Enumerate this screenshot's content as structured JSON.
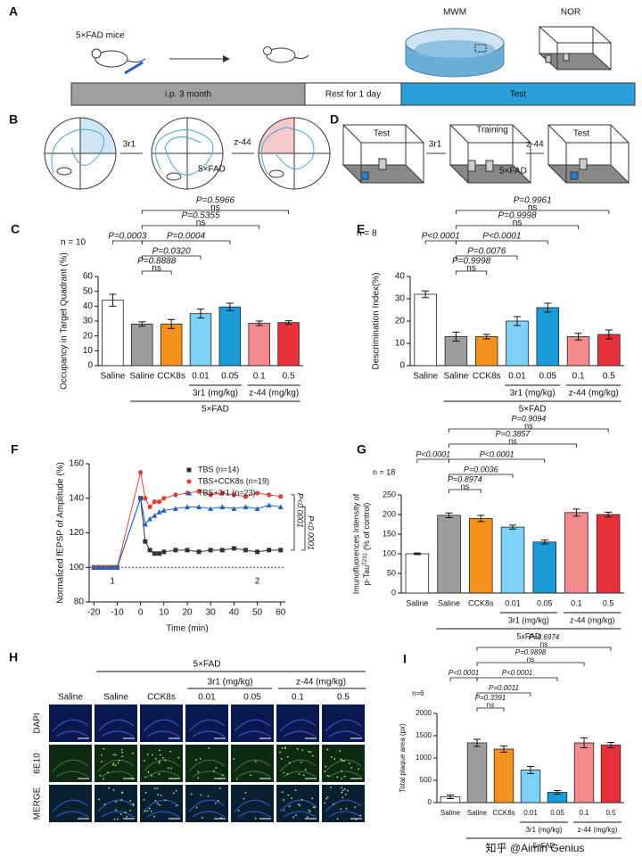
{
  "figure": {
    "A": {
      "label": "A",
      "mouse": "5×FAD mice",
      "mwm": "MWM",
      "nor": "NOR",
      "timeline": [
        "i.p. 3 month",
        "Rest for 1 day",
        "Test"
      ]
    },
    "B": {
      "label": "B",
      "left": "3r1",
      "center": "5×FAD",
      "right": "z-44"
    },
    "D": {
      "label": "D",
      "boxes": [
        "Test",
        "Training",
        "Test"
      ],
      "left": "3r1",
      "center": "5×FAD",
      "right": "z-44"
    },
    "H": {
      "label": "H",
      "title": "5×FAD",
      "groups": [
        "3r1 (mg/kg)",
        "z-44 (mg/kg)"
      ],
      "columns": [
        "Saline",
        "Saline",
        "CCK8s",
        "0.01",
        "0.05",
        "0.1",
        "0.5"
      ],
      "rows": [
        "DAPI",
        "6E10",
        "MERGE"
      ]
    },
    "watermark": "知乎 @Aimin Genius"
  },
  "chart_data": [
    {
      "type": "bar",
      "panel": "C",
      "n_label": "n = 10",
      "ylabel": "Occupancy in Target Quadrant (%)",
      "categories": [
        "Saline",
        "Saline",
        "CCK8s",
        "0.01",
        "0.05",
        "0.1",
        "0.5"
      ],
      "values": [
        44,
        28,
        28,
        35,
        39.5,
        28.5,
        29
      ],
      "errors": [
        4,
        1.5,
        3,
        3,
        2.5,
        1.5,
        1.2
      ],
      "colors": [
        "#ffffff",
        "#9e9e9e",
        "#f5921e",
        "#7fd0f5",
        "#1a9ad8",
        "#f58a8e",
        "#e8303a"
      ],
      "ylim": [
        0,
        60
      ],
      "yticks": [
        0,
        10,
        20,
        30,
        40,
        50,
        60
      ],
      "groups": [
        "3r1 (mg/kg)",
        "z-44 (mg/kg)"
      ],
      "group_all": "5×FAD",
      "comparisons": [
        {
          "p": "P=0.0003"
        },
        {
          "p": "P=0.8888",
          "sig": "ns"
        },
        {
          "p": "P=0.0320"
        },
        {
          "p": "P=0.0004"
        },
        {
          "p": "P=0.5355",
          "sig": "ns"
        },
        {
          "p": "P=0.5966",
          "sig": "ns"
        }
      ]
    },
    {
      "type": "bar",
      "panel": "E",
      "n_label": "n = 8",
      "ylabel": "Descrimination Index(%)",
      "categories": [
        "Saline",
        "Saline",
        "CCK8s",
        "0.01",
        "0.05",
        "0.1",
        "0.5"
      ],
      "values": [
        32,
        13,
        13,
        20,
        26,
        13,
        14
      ],
      "errors": [
        1.5,
        2,
        1,
        2,
        2,
        1.5,
        2
      ],
      "colors": [
        "#ffffff",
        "#9e9e9e",
        "#f5921e",
        "#7fd0f5",
        "#1a9ad8",
        "#f58a8e",
        "#e8303a"
      ],
      "ylim": [
        0,
        40
      ],
      "yticks": [
        0,
        10,
        20,
        30,
        40
      ],
      "groups": [
        "3r1 (mg/kg)",
        "z-44 (mg/kg)"
      ],
      "group_all": "5×FAD",
      "comparisons": [
        {
          "p": "P<0.0001"
        },
        {
          "p": "P=0.9998",
          "sig": "ns"
        },
        {
          "p": "P=0.0076"
        },
        {
          "p": "P<0.0001"
        },
        {
          "p": "P=0.9998",
          "sig": "ns"
        },
        {
          "p": "P=0.9961",
          "sig": "ns"
        }
      ]
    },
    {
      "type": "line",
      "panel": "F",
      "xlabel": "Time (min)",
      "ylabel": "Normalized fEPSP of Amplitude (%)",
      "x": [
        -20,
        -18,
        -16,
        -14,
        -12,
        -10,
        0,
        2,
        4,
        6,
        8,
        10,
        15,
        20,
        25,
        30,
        35,
        40,
        45,
        50,
        55,
        60
      ],
      "series": [
        {
          "name": "TBS  (n=14)",
          "color": "#333333",
          "marker": "square",
          "values": [
            100,
            100,
            100,
            100,
            100,
            100,
            140,
            115,
            110,
            108,
            108,
            109,
            110,
            110,
            109,
            110,
            110,
            111,
            110,
            109,
            110,
            110
          ]
        },
        {
          "name": "TBS+CCK8s   (n=19)",
          "color": "#e0403a",
          "marker": "circle",
          "values": [
            100,
            100,
            100,
            100,
            100,
            100,
            155,
            140,
            135,
            138,
            138,
            140,
            142,
            143,
            144,
            142,
            143,
            142,
            141,
            143,
            142,
            141
          ]
        },
        {
          "name": "TBS+3r1   (n=23)",
          "color": "#2060c0",
          "marker": "triangle",
          "values": [
            100,
            100,
            100,
            100,
            100,
            100,
            140,
            125,
            128,
            130,
            132,
            133,
            134,
            135,
            135,
            134,
            135,
            134,
            135,
            134,
            136,
            135
          ]
        }
      ],
      "xlim": [
        -22,
        62
      ],
      "xticks": [
        -20,
        -10,
        0,
        10,
        20,
        30,
        40,
        50,
        60
      ],
      "ylim": [
        80,
        160
      ],
      "yticks": [
        80,
        100,
        120,
        140,
        160
      ],
      "baseline": 100,
      "phase_labels": [
        "1",
        "2"
      ],
      "p_labels": [
        "P<0.0001",
        "P<0.0001"
      ]
    },
    {
      "type": "bar",
      "panel": "G",
      "n_label": "n = 18",
      "ylabel": "Imunofluorences Intensity of",
      "ylabel2": "p-Tau",
      "ylabel2_sup": "T231",
      "ylabel3": "(% of control)",
      "categories": [
        "Saline",
        "Saline",
        "CCK8s",
        "0.01",
        "0.05",
        "0.1",
        "0.5"
      ],
      "values": [
        100,
        198,
        190,
        168,
        130,
        205,
        200
      ],
      "errors": [
        2,
        6,
        8,
        5,
        5,
        9,
        6
      ],
      "colors": [
        "#ffffff",
        "#9e9e9e",
        "#f5921e",
        "#7fd0f5",
        "#1a9ad8",
        "#f58a8e",
        "#e8303a"
      ],
      "ylim": [
        0,
        250
      ],
      "yticks": [
        0,
        50,
        100,
        150,
        200,
        250
      ],
      "groups": [
        "3r1 (mg/kg)",
        "z-44 (mg/kg)"
      ],
      "group_all": "5xFAD",
      "comparisons": [
        {
          "p": "P<0.0001"
        },
        {
          "p": "P=0.8974",
          "sig": "ns"
        },
        {
          "p": "P=0.0036"
        },
        {
          "p": "P<0.0001"
        },
        {
          "p": "P=0.3857",
          "sig": "ns"
        },
        {
          "p": "P=0.9094",
          "sig": "ns"
        }
      ]
    },
    {
      "type": "bar",
      "panel": "I",
      "n_label": "n=6",
      "ylabel": "Total plaque area (px)",
      "categories": [
        "Saline",
        "Saline",
        "CCK8s",
        "0.01",
        "0.05",
        "0.1",
        "0.5"
      ],
      "values": [
        130,
        1340,
        1200,
        730,
        230,
        1340,
        1290
      ],
      "errors": [
        40,
        80,
        70,
        80,
        40,
        110,
        60
      ],
      "colors": [
        "#ffffff",
        "#9e9e9e",
        "#f5921e",
        "#7fd0f5",
        "#1a9ad8",
        "#f58a8e",
        "#e8303a"
      ],
      "ylim": [
        0,
        2000
      ],
      "yticks": [
        0,
        500,
        1000,
        1500,
        2000
      ],
      "groups": [
        "3r1 (mg/kg)",
        "z-44 (mg/kg)"
      ],
      "group_all": "5×FAD",
      "comparisons": [
        {
          "p": "P<0.0001"
        },
        {
          "p": "P=0.3391",
          "sig": "ns"
        },
        {
          "p": "P=0.0011"
        },
        {
          "p": "P<0.0001"
        },
        {
          "p": "P=0.9898",
          "sig": "ns"
        },
        {
          "p": "P=0.6974",
          "sig": "ns"
        }
      ]
    }
  ]
}
